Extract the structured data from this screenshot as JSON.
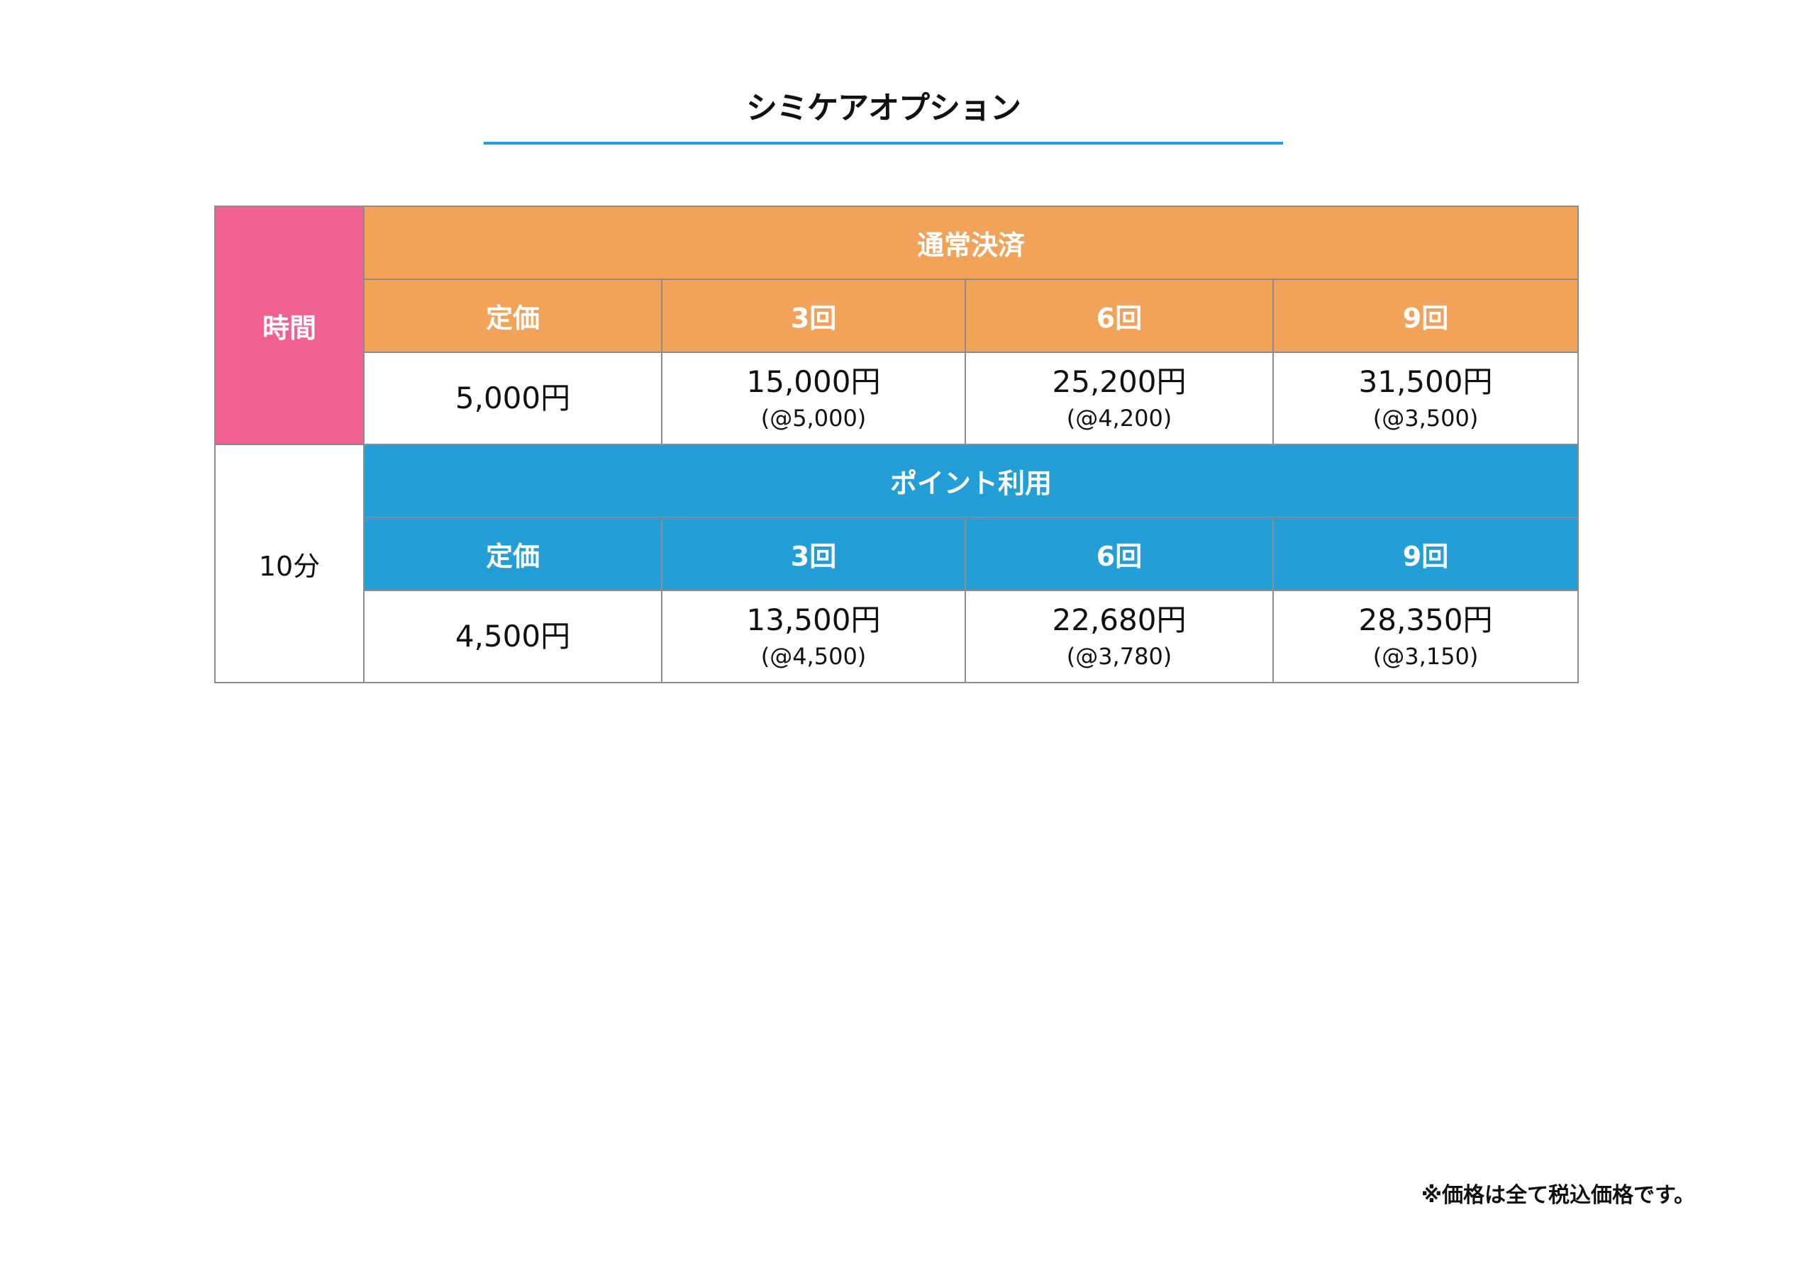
{
  "title": "シミケアオプション",
  "colors": {
    "accent_line": "#2a9fd6",
    "time_header": "#ef6190",
    "normal_payment": "#f1a35a",
    "point_usage": "#239ed7",
    "border": "#8c8c8c"
  },
  "table": {
    "time_label": "時間",
    "time_value": "10分",
    "sections": [
      {
        "name": "通常決済",
        "headers": [
          "定価",
          "3回",
          "6回",
          "9回"
        ],
        "values": [
          {
            "price": "5,000円",
            "per": ""
          },
          {
            "price": "15,000円",
            "per": "(@5,000)"
          },
          {
            "price": "25,200円",
            "per": "(@4,200)"
          },
          {
            "price": "31,500円",
            "per": "(@3,500)"
          }
        ]
      },
      {
        "name": "ポイント利用",
        "headers": [
          "定価",
          "3回",
          "6回",
          "9回"
        ],
        "values": [
          {
            "price": "4,500円",
            "per": ""
          },
          {
            "price": "13,500円",
            "per": "(@4,500)"
          },
          {
            "price": "22,680円",
            "per": "(@3,780)"
          },
          {
            "price": "28,350円",
            "per": "(@3,150)"
          }
        ]
      }
    ]
  },
  "footnote": "※価格は全て税込価格です。"
}
